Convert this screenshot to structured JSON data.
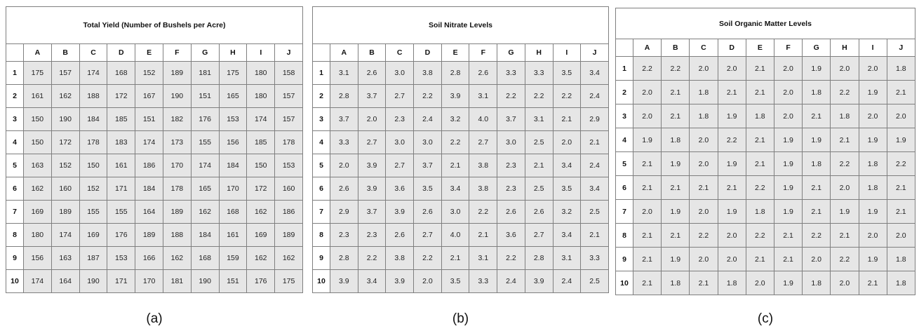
{
  "columns": [
    "A",
    "B",
    "C",
    "D",
    "E",
    "F",
    "G",
    "H",
    "I",
    "J"
  ],
  "rows": [
    "1",
    "2",
    "3",
    "4",
    "5",
    "6",
    "7",
    "8",
    "9",
    "10"
  ],
  "tables": [
    {
      "id": "a",
      "title": "Total Yield (Number of Bushels per Acre)",
      "caption": "(a)",
      "values": [
        [
          "175",
          "157",
          "174",
          "168",
          "152",
          "189",
          "181",
          "175",
          "180",
          "158"
        ],
        [
          "161",
          "162",
          "188",
          "172",
          "167",
          "190",
          "151",
          "165",
          "180",
          "157"
        ],
        [
          "150",
          "190",
          "184",
          "185",
          "151",
          "182",
          "176",
          "153",
          "174",
          "157"
        ],
        [
          "150",
          "172",
          "178",
          "183",
          "174",
          "173",
          "155",
          "156",
          "185",
          "178"
        ],
        [
          "163",
          "152",
          "150",
          "161",
          "186",
          "170",
          "174",
          "184",
          "150",
          "153"
        ],
        [
          "162",
          "160",
          "152",
          "171",
          "184",
          "178",
          "165",
          "170",
          "172",
          "160"
        ],
        [
          "169",
          "189",
          "155",
          "155",
          "164",
          "189",
          "162",
          "168",
          "162",
          "186"
        ],
        [
          "180",
          "174",
          "169",
          "176",
          "189",
          "188",
          "184",
          "161",
          "169",
          "189"
        ],
        [
          "156",
          "163",
          "187",
          "153",
          "166",
          "162",
          "168",
          "159",
          "162",
          "162"
        ],
        [
          "174",
          "164",
          "190",
          "171",
          "170",
          "181",
          "190",
          "151",
          "176",
          "175"
        ]
      ]
    },
    {
      "id": "b",
      "title": "Soil Nitrate Levels",
      "caption": "(b)",
      "values": [
        [
          "3.1",
          "2.6",
          "3.0",
          "3.8",
          "2.8",
          "2.6",
          "3.3",
          "3.3",
          "3.5",
          "3.4"
        ],
        [
          "2.8",
          "3.7",
          "2.7",
          "2.2",
          "3.9",
          "3.1",
          "2.2",
          "2.2",
          "2.2",
          "2.4"
        ],
        [
          "3.7",
          "2.0",
          "2.3",
          "2.4",
          "3.2",
          "4.0",
          "3.7",
          "3.1",
          "2.1",
          "2.9"
        ],
        [
          "3.3",
          "2.7",
          "3.0",
          "3.0",
          "2.2",
          "2.7",
          "3.0",
          "2.5",
          "2.0",
          "2.1"
        ],
        [
          "2.0",
          "3.9",
          "2.7",
          "3.7",
          "2.1",
          "3.8",
          "2.3",
          "2.1",
          "3.4",
          "2.4"
        ],
        [
          "2.6",
          "3.9",
          "3.6",
          "3.5",
          "3.4",
          "3.8",
          "2.3",
          "2.5",
          "3.5",
          "3.4"
        ],
        [
          "2.9",
          "3.7",
          "3.9",
          "2.6",
          "3.0",
          "2.2",
          "2.6",
          "2.6",
          "3.2",
          "2.5"
        ],
        [
          "2.3",
          "2.3",
          "2.6",
          "2.7",
          "4.0",
          "2.1",
          "3.6",
          "2.7",
          "3.4",
          "2.1"
        ],
        [
          "2.8",
          "2.2",
          "3.8",
          "2.2",
          "2.1",
          "3.1",
          "2.2",
          "2.8",
          "3.1",
          "3.3"
        ],
        [
          "3.9",
          "3.4",
          "3.9",
          "2.0",
          "3.5",
          "3.3",
          "2.4",
          "3.9",
          "2.4",
          "2.5"
        ]
      ]
    },
    {
      "id": "c",
      "title": "Soil Organic Matter Levels",
      "caption": "(c)",
      "values": [
        [
          "2.2",
          "2.2",
          "2.0",
          "2.0",
          "2.1",
          "2.0",
          "1.9",
          "2.0",
          "2.0",
          "1.8"
        ],
        [
          "2.0",
          "2.1",
          "1.8",
          "2.1",
          "2.1",
          "2.0",
          "1.8",
          "2.2",
          "1.9",
          "2.1"
        ],
        [
          "2.0",
          "2.1",
          "1.8",
          "1.9",
          "1.8",
          "2.0",
          "2.1",
          "1.8",
          "2.0",
          "2.0"
        ],
        [
          "1.9",
          "1.8",
          "2.0",
          "2.2",
          "2.1",
          "1.9",
          "1.9",
          "2.1",
          "1.9",
          "1.9"
        ],
        [
          "2.1",
          "1.9",
          "2.0",
          "1.9",
          "2.1",
          "1.9",
          "1.8",
          "2.2",
          "1.8",
          "2.2"
        ],
        [
          "2.1",
          "2.1",
          "2.1",
          "2.1",
          "2.2",
          "1.9",
          "2.1",
          "2.0",
          "1.8",
          "2.1"
        ],
        [
          "2.0",
          "1.9",
          "2.0",
          "1.9",
          "1.8",
          "1.9",
          "2.1",
          "1.9",
          "1.9",
          "2.1"
        ],
        [
          "2.1",
          "2.1",
          "2.2",
          "2.0",
          "2.2",
          "2.1",
          "2.2",
          "2.1",
          "2.0",
          "2.0"
        ],
        [
          "2.1",
          "1.9",
          "2.0",
          "2.0",
          "2.1",
          "2.1",
          "2.0",
          "2.2",
          "1.9",
          "1.8"
        ],
        [
          "2.1",
          "1.8",
          "2.1",
          "1.8",
          "2.0",
          "1.9",
          "1.8",
          "2.0",
          "2.1",
          "1.8"
        ]
      ]
    }
  ]
}
